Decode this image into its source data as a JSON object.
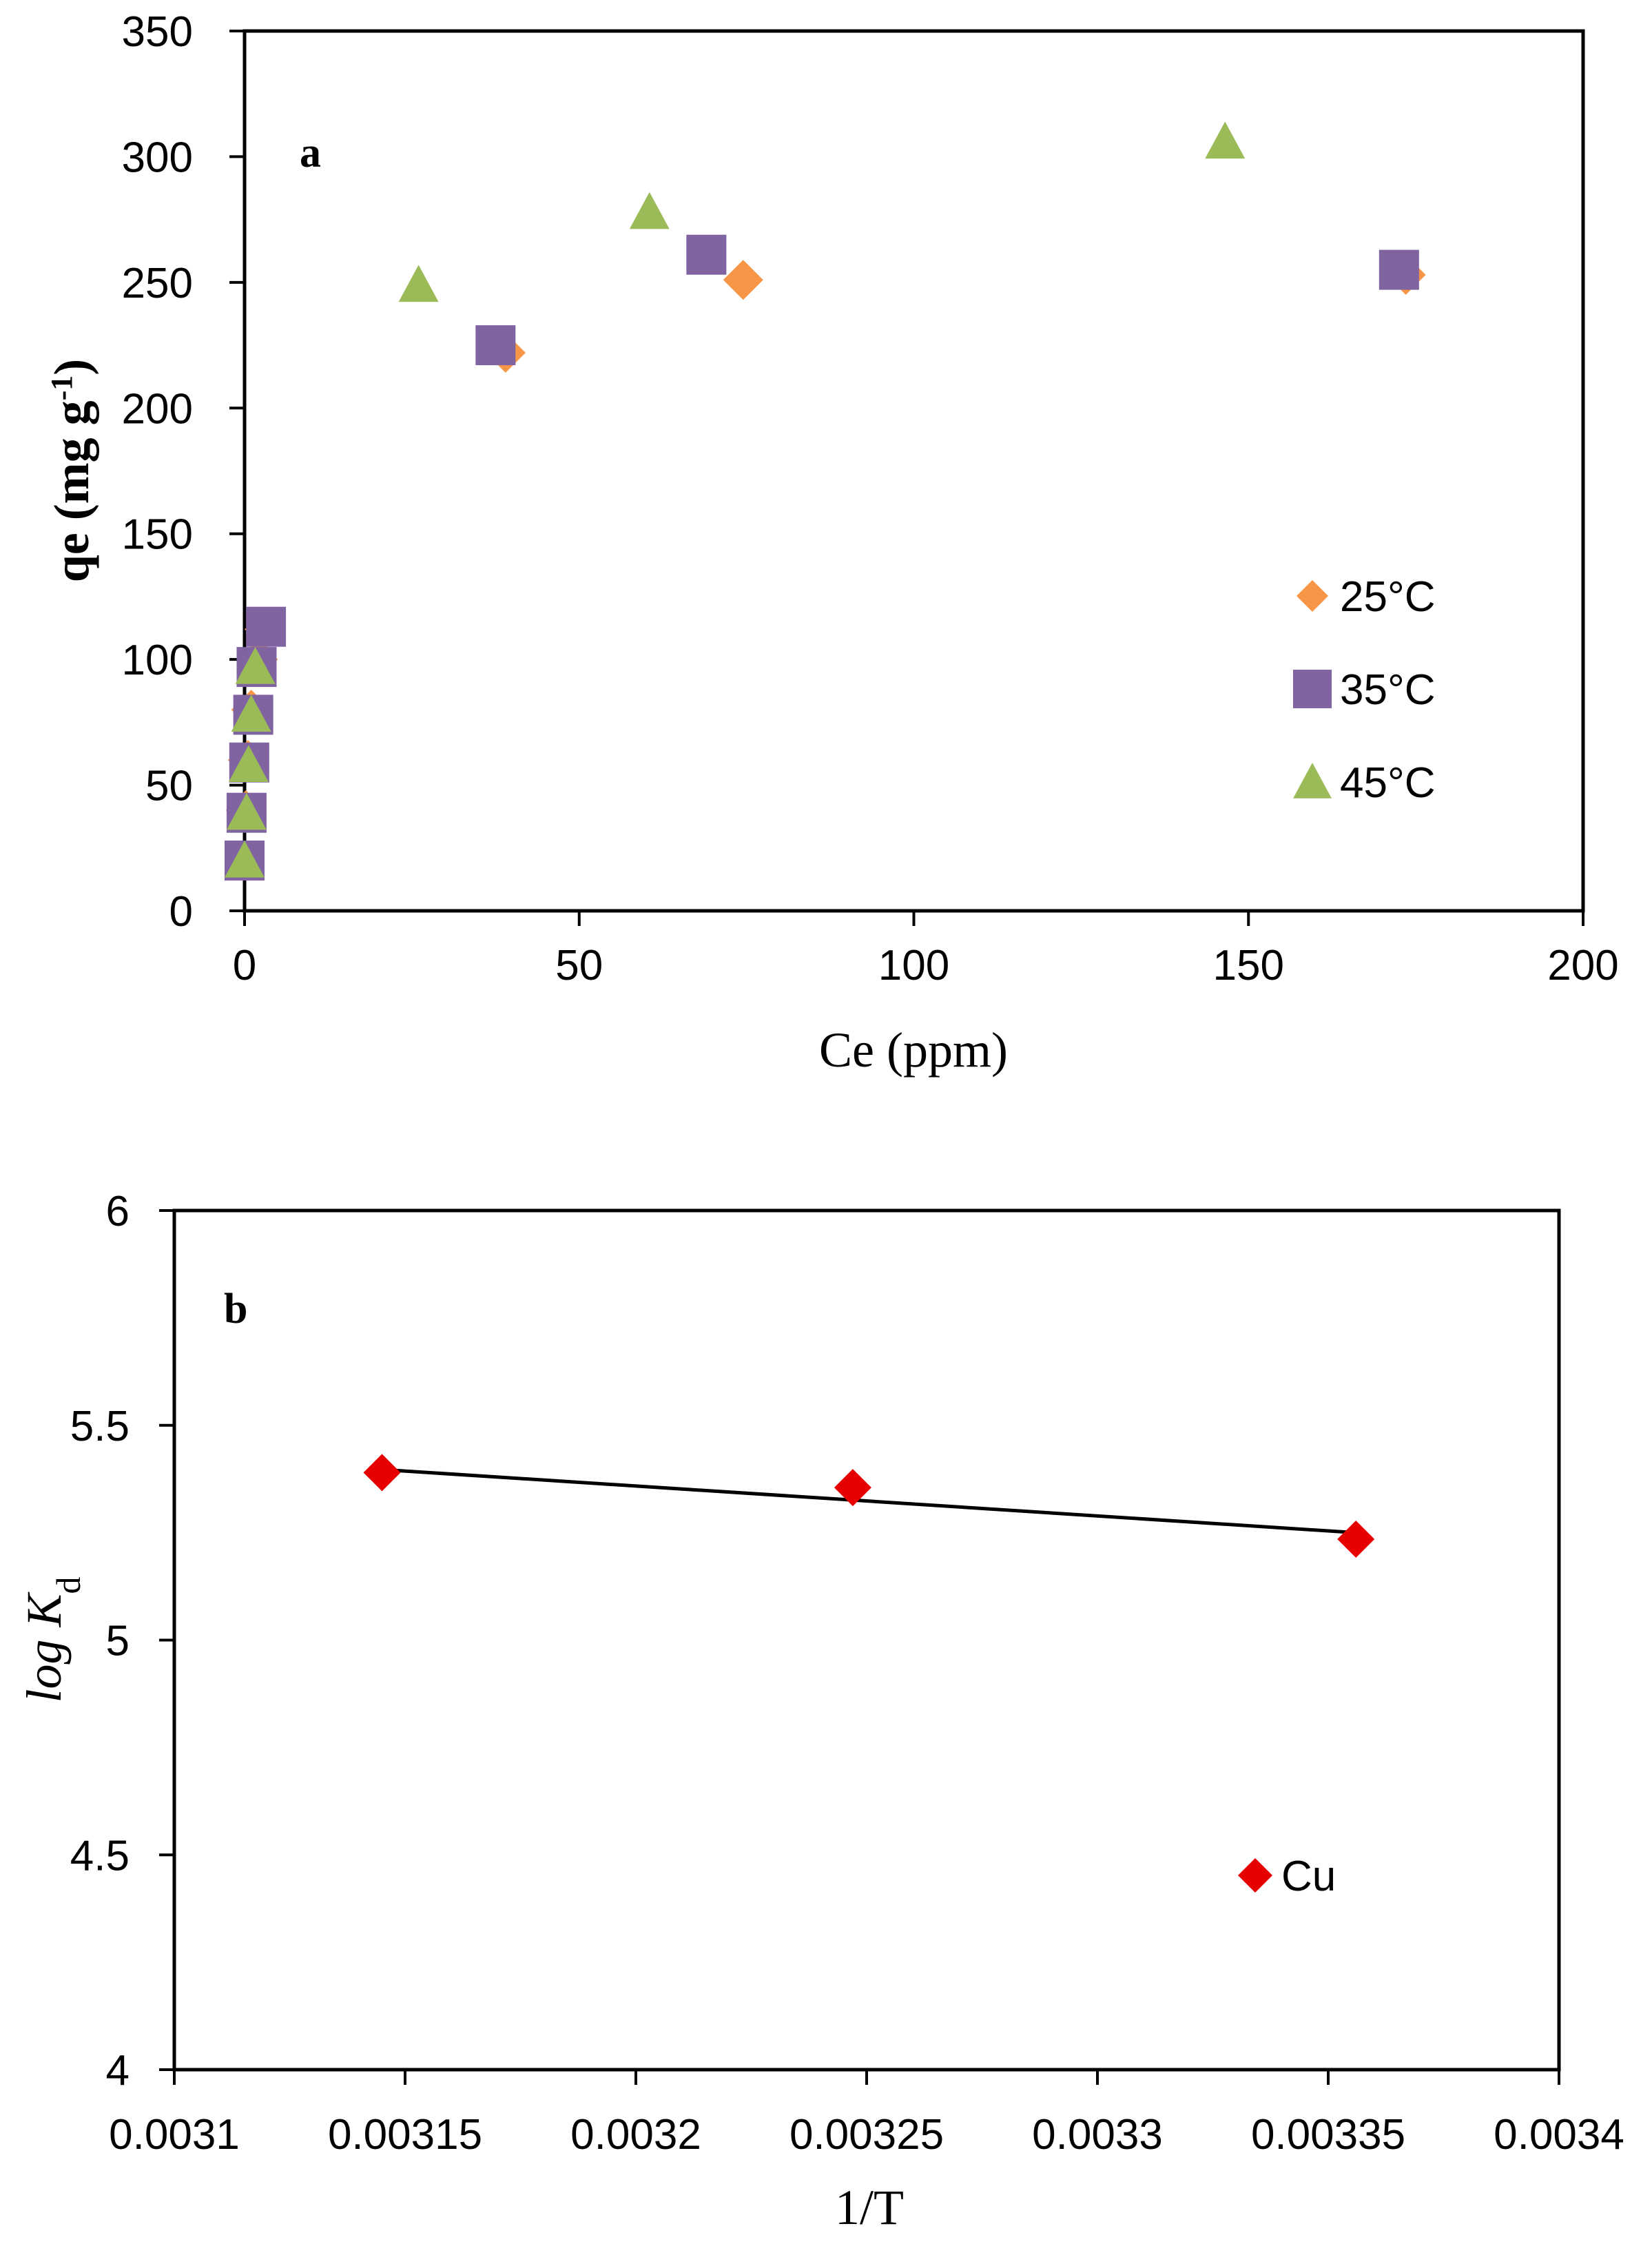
{
  "chart_data": [
    {
      "type": "scatter",
      "panel": "a",
      "xlabel": "Ce (ppm)",
      "ylabel": "qe (mg g-1)",
      "ylabel_parts": {
        "main": "qe (mg g",
        "sup": "-1",
        "close": ")"
      },
      "xlim": [
        0,
        200
      ],
      "ylim": [
        0,
        350
      ],
      "xticks": [
        0,
        50,
        100,
        150,
        200
      ],
      "yticks": [
        0,
        50,
        100,
        150,
        200,
        250,
        300,
        350
      ],
      "grid": false,
      "legend_position": "right",
      "series": [
        {
          "name": "25°C",
          "marker": "diamond",
          "color": "#F79646",
          "points": [
            [
              0,
              20
            ],
            [
              0.2,
              40
            ],
            [
              0.5,
              60
            ],
            [
              1,
              80
            ],
            [
              2,
              100
            ],
            [
              3,
              112
            ],
            [
              39,
              222
            ],
            [
              74.5,
              251
            ],
            [
              173.5,
              253
            ]
          ]
        },
        {
          "name": "35°C",
          "marker": "square",
          "color": "#8064A2",
          "points": [
            [
              0,
              20
            ],
            [
              0.3,
              39
            ],
            [
              0.7,
              59
            ],
            [
              1.3,
              78
            ],
            [
              1.8,
              97
            ],
            [
              3.2,
              113
            ],
            [
              37.5,
              225
            ],
            [
              69,
              261
            ],
            [
              172.5,
              255
            ]
          ]
        },
        {
          "name": "45°C",
          "marker": "triangle",
          "color": "#9BBB59",
          "points": [
            [
              0,
              20
            ],
            [
              0.3,
              39
            ],
            [
              0.6,
              58
            ],
            [
              1,
              78
            ],
            [
              1.6,
              97
            ],
            [
              26,
              249
            ],
            [
              60.5,
              278
            ],
            [
              146.5,
              306
            ]
          ]
        }
      ]
    },
    {
      "type": "scatter",
      "panel": "b",
      "xlabel": "1/T",
      "ylabel": "log Kd",
      "ylabel_parts": {
        "main": "log K",
        "sub": "d"
      },
      "xlim": [
        0.0031,
        0.0034
      ],
      "ylim": [
        4,
        6
      ],
      "xticks": [
        0.0031,
        0.00315,
        0.0032,
        0.00325,
        0.0033,
        0.00335,
        0.0034
      ],
      "xtick_labels": [
        "0.0031",
        "0.00315",
        "0.0032",
        "0.00325",
        "0.0033",
        "0.00335",
        "0.0034"
      ],
      "yticks": [
        4,
        4.5,
        5,
        5.5,
        6
      ],
      "ytick_labels": [
        "4",
        "4.5",
        "5",
        "5.5",
        "6"
      ],
      "grid": false,
      "legend_position": "bottom-right",
      "series": [
        {
          "name": "Cu",
          "marker": "diamond",
          "color": "#E60000",
          "points": [
            [
              0.003145,
              5.39
            ],
            [
              0.003247,
              5.355
            ],
            [
              0.003356,
              5.235
            ]
          ]
        }
      ],
      "trendline": {
        "x": [
          0.003145,
          0.003356
        ],
        "y": [
          5.397,
          5.25
        ],
        "color": "#000000"
      }
    }
  ]
}
